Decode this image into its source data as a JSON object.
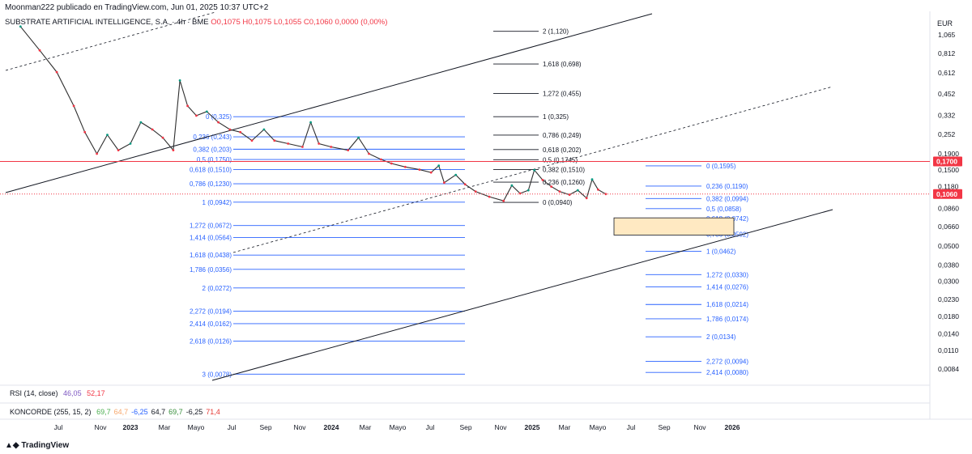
{
  "header": {
    "publisher": "Moonman222 publicado en TradingView.com, Jun 01, 2025 10:37 UTC+2"
  },
  "symbol": {
    "name": "SUBSTRATE ARTIFICIAL INTELLIGENCE, S.A. · 4h · BME",
    "ohlc": "O0,1075 H0,1075 L0,1055 C0,1060 0,0000 (0,00%)"
  },
  "currency": "EUR",
  "chart_data": {
    "type": "line",
    "scale": "log",
    "price_axis": [
      "1,065",
      "0,812",
      "0,612",
      "0,452",
      "0,332",
      "0,252",
      "0,1900",
      "0,1500",
      "0,1180",
      "0,0860",
      "0,0660",
      "0,0500",
      "0,0380",
      "0,0300",
      "0,0230",
      "0,0180",
      "0,0140",
      "0,0110",
      "0,0084"
    ],
    "price_axis_values": [
      1.065,
      0.812,
      0.612,
      0.452,
      0.332,
      0.252,
      0.19,
      0.15,
      0.118,
      0.086,
      0.066,
      0.05,
      0.038,
      0.03,
      0.023,
      0.018,
      0.014,
      0.011,
      0.0084
    ],
    "time_axis": [
      "Jul",
      "Nov",
      "2023",
      "Mar",
      "Mayo",
      "Jul",
      "Sep",
      "Nov",
      "2024",
      "Mar",
      "Mayo",
      "Jul",
      "Sep",
      "Nov",
      "2025",
      "Mar",
      "Mayo",
      "Jul",
      "Sep",
      "Nov",
      "2026"
    ],
    "price_series": [
      [
        "2022-06-15",
        1.2
      ],
      [
        "2022-07-20",
        0.85
      ],
      [
        "2022-08-20",
        0.62
      ],
      [
        "2022-09-20",
        0.38
      ],
      [
        "2022-10-10",
        0.26
      ],
      [
        "2022-11-01",
        0.19
      ],
      [
        "2022-11-20",
        0.25
      ],
      [
        "2022-12-10",
        0.2
      ],
      [
        "2023-01-01",
        0.22
      ],
      [
        "2023-01-20",
        0.3
      ],
      [
        "2023-02-10",
        0.27
      ],
      [
        "2023-03-01",
        0.24
      ],
      [
        "2023-03-20",
        0.2
      ],
      [
        "2023-04-01",
        0.55
      ],
      [
        "2023-04-15",
        0.38
      ],
      [
        "2023-05-01",
        0.33
      ],
      [
        "2023-05-20",
        0.35
      ],
      [
        "2023-06-10",
        0.3
      ],
      [
        "2023-07-01",
        0.27
      ],
      [
        "2023-07-20",
        0.26
      ],
      [
        "2023-08-10",
        0.23
      ],
      [
        "2023-09-01",
        0.27
      ],
      [
        "2023-09-20",
        0.23
      ],
      [
        "2023-10-15",
        0.22
      ],
      [
        "2023-11-10",
        0.21
      ],
      [
        "2023-11-25",
        0.3
      ],
      [
        "2023-12-10",
        0.22
      ],
      [
        "2024-01-01",
        0.21
      ],
      [
        "2024-02-01",
        0.2
      ],
      [
        "2024-02-20",
        0.24
      ],
      [
        "2024-03-10",
        0.19
      ],
      [
        "2024-04-01",
        0.175
      ],
      [
        "2024-04-20",
        0.165
      ],
      [
        "2024-05-15",
        0.157
      ],
      [
        "2024-06-10",
        0.151
      ],
      [
        "2024-07-01",
        0.145
      ],
      [
        "2024-07-15",
        0.16
      ],
      [
        "2024-07-25",
        0.125
      ],
      [
        "2024-08-15",
        0.14
      ],
      [
        "2024-09-01",
        0.122
      ],
      [
        "2024-09-20",
        0.11
      ],
      [
        "2024-10-15",
        0.102
      ],
      [
        "2024-11-10",
        0.096
      ],
      [
        "2024-11-25",
        0.12
      ],
      [
        "2024-12-10",
        0.107
      ],
      [
        "2024-12-25",
        0.112
      ],
      [
        "2025-01-05",
        0.15
      ],
      [
        "2025-01-20",
        0.13
      ],
      [
        "2025-02-05",
        0.118
      ],
      [
        "2025-02-20",
        0.11
      ],
      [
        "2025-03-10",
        0.105
      ],
      [
        "2025-03-25",
        0.112
      ],
      [
        "2025-04-10",
        0.1
      ],
      [
        "2025-04-20",
        0.131
      ],
      [
        "2025-05-01",
        0.113
      ],
      [
        "2025-05-15",
        0.106
      ]
    ],
    "horizontal_lines": [
      {
        "label": "0,1700",
        "price": 0.17,
        "color": "#f23645"
      },
      {
        "label": "0,1060",
        "price": 0.106,
        "color": "#f23645",
        "dotted": true
      }
    ],
    "fib_sets": [
      {
        "color": "#2962ff",
        "levels": [
          {
            "label": "0 (0,325)",
            "price": 0.325
          },
          {
            "label": "0,236 (0,243)",
            "price": 0.243
          },
          {
            "label": "0,382 (0,203)",
            "price": 0.203
          },
          {
            "label": "0,5 (0,1750)",
            "price": 0.175
          },
          {
            "label": "0,618 (0,1510)",
            "price": 0.151
          },
          {
            "label": "0,786 (0,1230)",
            "price": 0.123
          },
          {
            "label": "1 (0,0942)",
            "price": 0.0942
          },
          {
            "label": "1,272 (0,0672)",
            "price": 0.0672
          },
          {
            "label": "1,414 (0,0564)",
            "price": 0.0564
          },
          {
            "label": "1,618 (0,0438)",
            "price": 0.0438
          },
          {
            "label": "1,786 (0,0356)",
            "price": 0.0356
          },
          {
            "label": "2 (0,0272)",
            "price": 0.0272
          },
          {
            "label": "2,272 (0,0194)",
            "price": 0.0194
          },
          {
            "label": "2,414 (0,0162)",
            "price": 0.0162
          },
          {
            "label": "2,618 (0,0126)",
            "price": 0.0126
          },
          {
            "label": "3 (0,0078)",
            "price": 0.0078
          }
        ]
      },
      {
        "color": "#131722",
        "levels": [
          {
            "label": "2 (1,120)",
            "price": 1.12
          },
          {
            "label": "1,618 (0,698)",
            "price": 0.698
          },
          {
            "label": "1,272 (0,455)",
            "price": 0.455
          },
          {
            "label": "1 (0,325)",
            "price": 0.325
          },
          {
            "label": "0,786 (0,249)",
            "price": 0.249
          },
          {
            "label": "0,618 (0,202)",
            "price": 0.202
          },
          {
            "label": "0,5 (0,1745)",
            "price": 0.1745
          },
          {
            "label": "0,382 (0,1510)",
            "price": 0.151
          },
          {
            "label": "0,236 (0,1260)",
            "price": 0.126
          },
          {
            "label": "0 (0,0940)",
            "price": 0.094
          }
        ]
      },
      {
        "color": "#2962ff",
        "levels": [
          {
            "label": "0 (0,1595)",
            "price": 0.1595
          },
          {
            "label": "0,236 (0,1190)",
            "price": 0.119
          },
          {
            "label": "0,382 (0,0994)",
            "price": 0.0994
          },
          {
            "label": "0,5 (0,0858)",
            "price": 0.0858
          },
          {
            "label": "0,618 (0,0742)",
            "price": 0.0742
          },
          {
            "label": "0,786 (0,0592)",
            "price": 0.0592
          },
          {
            "label": "1 (0,0462)",
            "price": 0.0462
          },
          {
            "label": "1,272 (0,0330)",
            "price": 0.033
          },
          {
            "label": "1,414 (0,0276)",
            "price": 0.0276
          },
          {
            "label": "1,618 (0,0214)",
            "price": 0.0214
          },
          {
            "label": "1,786 (0,0174)",
            "price": 0.0174
          },
          {
            "label": "2 (0,0134)",
            "price": 0.0134
          },
          {
            "label": "2,272 (0,0094)",
            "price": 0.0094
          },
          {
            "label": "2,414 (0,0080)",
            "price": 0.008
          }
        ]
      }
    ]
  },
  "rsi": {
    "label": "RSI (14, close)",
    "value1": "46,05",
    "value2": "52,17",
    "color1": "#7e57c2",
    "color2": "#f23645"
  },
  "koncorde": {
    "label": "KONCORDE (255, 15, 2)",
    "values": [
      {
        "text": "69,7",
        "color": "#4caf50"
      },
      {
        "text": "64,7",
        "color": "#f7a76c"
      },
      {
        "text": "-6,25",
        "color": "#2962ff"
      },
      {
        "text": "64,7",
        "color": "#131722"
      },
      {
        "text": "69,7",
        "color": "#388e3c"
      },
      {
        "text": "-6,25",
        "color": "#131722"
      },
      {
        "text": "71,4",
        "color": "#e53935"
      }
    ]
  },
  "brand": "TradingView"
}
